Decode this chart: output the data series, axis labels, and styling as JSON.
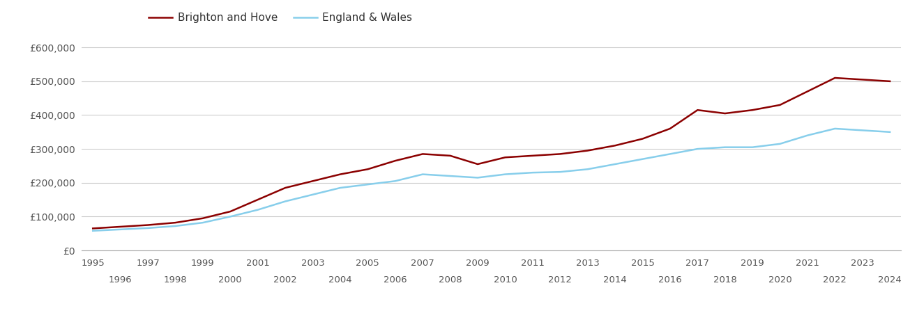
{
  "brighton_years": [
    1995,
    1996,
    1997,
    1998,
    1999,
    2000,
    2001,
    2002,
    2003,
    2004,
    2005,
    2006,
    2007,
    2008,
    2009,
    2010,
    2011,
    2012,
    2013,
    2014,
    2015,
    2016,
    2017,
    2018,
    2019,
    2020,
    2021,
    2022,
    2023,
    2024
  ],
  "brighton_values": [
    65000,
    70000,
    75000,
    82000,
    95000,
    115000,
    150000,
    185000,
    205000,
    225000,
    240000,
    265000,
    285000,
    280000,
    255000,
    275000,
    280000,
    285000,
    295000,
    310000,
    330000,
    360000,
    415000,
    405000,
    415000,
    430000,
    470000,
    510000,
    505000,
    500000
  ],
  "england_years": [
    1995,
    1996,
    1997,
    1998,
    1999,
    2000,
    2001,
    2002,
    2003,
    2004,
    2005,
    2006,
    2007,
    2008,
    2009,
    2010,
    2011,
    2012,
    2013,
    2014,
    2015,
    2016,
    2017,
    2018,
    2019,
    2020,
    2021,
    2022,
    2023,
    2024
  ],
  "england_values": [
    58000,
    62000,
    66000,
    72000,
    82000,
    100000,
    120000,
    145000,
    165000,
    185000,
    195000,
    205000,
    225000,
    220000,
    215000,
    225000,
    230000,
    232000,
    240000,
    255000,
    270000,
    285000,
    300000,
    305000,
    305000,
    315000,
    340000,
    360000,
    355000,
    350000
  ],
  "brighton_color": "#8B0000",
  "england_color": "#87CEEB",
  "legend_labels": [
    "Brighton and Hove",
    "England & Wales"
  ],
  "ylim": [
    0,
    620000
  ],
  "xlim_min": 1994.6,
  "xlim_max": 2024.4,
  "yticks": [
    0,
    100000,
    200000,
    300000,
    400000,
    500000,
    600000
  ],
  "ytick_labels": [
    "£0",
    "£100,000",
    "£200,000",
    "£300,000",
    "£400,000",
    "£500,000",
    "£600,000"
  ],
  "background_color": "#ffffff",
  "grid_color": "#cccccc",
  "line_width": 1.8,
  "tick_fontsize": 9.5,
  "tick_color": "#555555"
}
